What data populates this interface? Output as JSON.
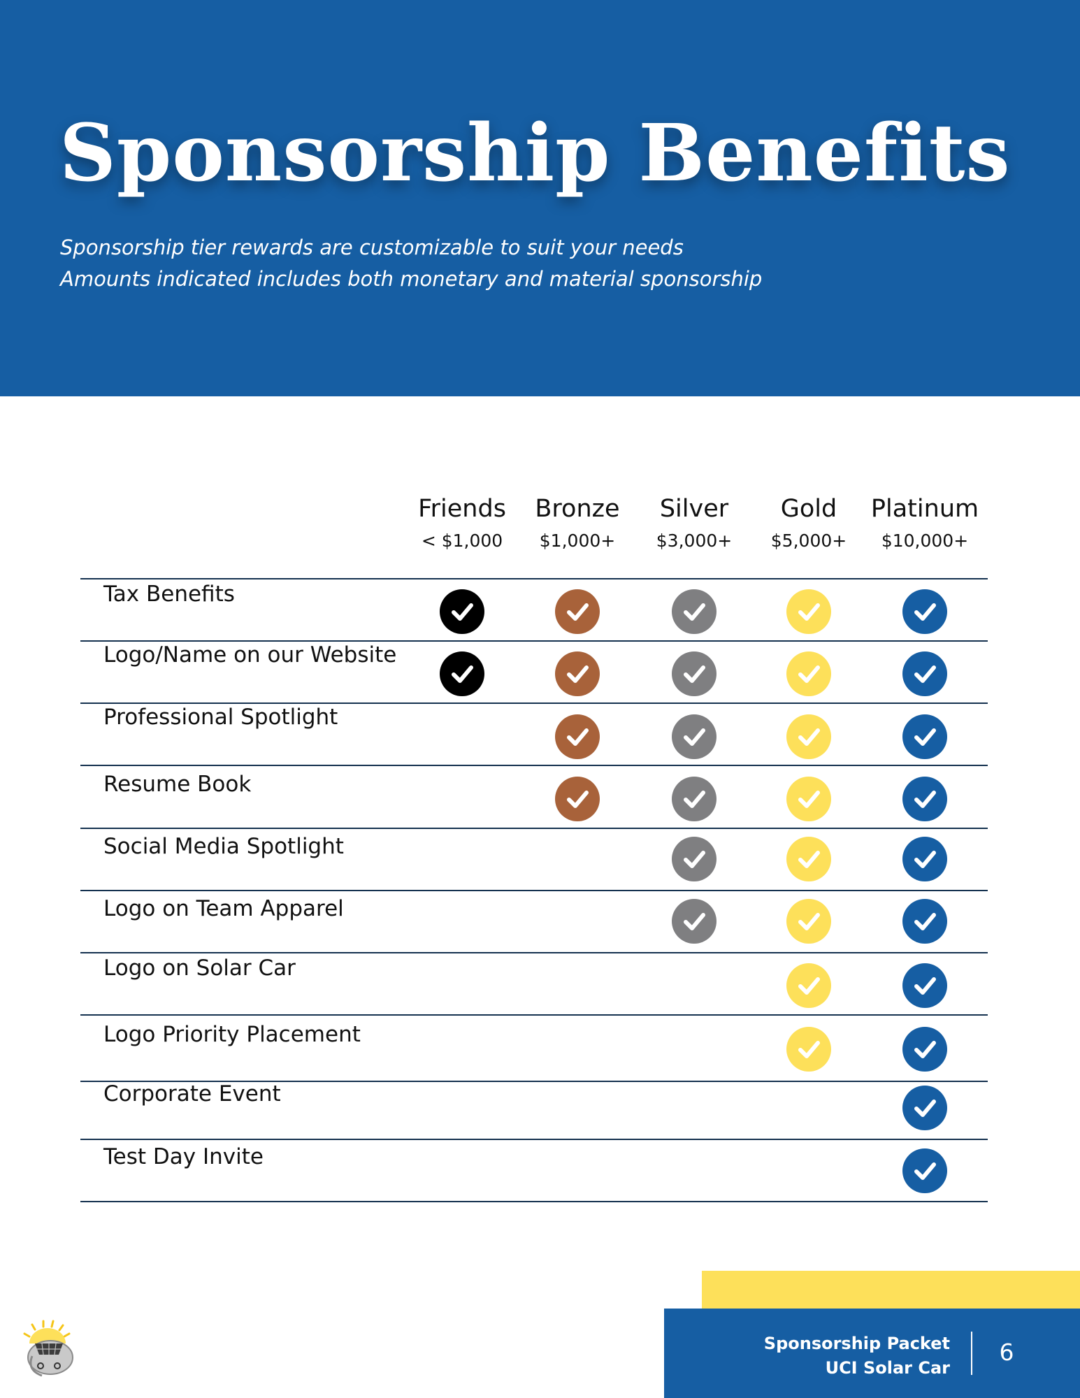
{
  "header": {
    "title": "Sponsorship Benefits",
    "subtitle_lines": [
      "Sponsorship tier rewards are customizable to suit your needs",
      "Amounts indicated includes both monetary and material sponsorship"
    ]
  },
  "tiers": [
    {
      "name": "Friends",
      "amount": "< $1,000",
      "color": "#000000"
    },
    {
      "name": "Bronze",
      "amount": "$1,000+",
      "color": "#a8623a"
    },
    {
      "name": "Silver",
      "amount": "$3,000+",
      "color": "#7f7f81"
    },
    {
      "name": "Gold",
      "amount": "$5,000+",
      "color": "#fde05a"
    },
    {
      "name": "Platinum",
      "amount": "$10,000+",
      "color": "#165ea3"
    }
  ],
  "benefits": [
    {
      "label": "Tax Benefits",
      "tiers": [
        "Friends",
        "Bronze",
        "Silver",
        "Gold",
        "Platinum"
      ]
    },
    {
      "label": "Logo/Name on our Website",
      "tiers": [
        "Friends",
        "Bronze",
        "Silver",
        "Gold",
        "Platinum"
      ]
    },
    {
      "label": "Professional Spotlight",
      "tiers": [
        "Bronze",
        "Silver",
        "Gold",
        "Platinum"
      ]
    },
    {
      "label": "Resume Book",
      "tiers": [
        "Bronze",
        "Silver",
        "Gold",
        "Platinum"
      ]
    },
    {
      "label": "Social Media Spotlight",
      "tiers": [
        "Silver",
        "Gold",
        "Platinum"
      ]
    },
    {
      "label": "Logo on Team Apparel",
      "tiers": [
        "Silver",
        "Gold",
        "Platinum"
      ]
    },
    {
      "label": "Logo on Solar Car",
      "tiers": [
        "Gold",
        "Platinum"
      ]
    },
    {
      "label": "Logo Priority Placement",
      "tiers": [
        "Gold",
        "Platinum"
      ]
    },
    {
      "label": "Corporate Event",
      "tiers": [
        "Platinum"
      ]
    },
    {
      "label": "Test Day Invite",
      "tiers": [
        "Platinum"
      ]
    }
  ],
  "footer": {
    "line1": "Sponsorship Packet",
    "line2": "UCI Solar Car",
    "page_number": "6",
    "logo_icon": "uci-solar-car-logo"
  },
  "colors": {
    "header_blue": "#165ea3",
    "accent_yellow": "#fde05a",
    "rule": "#14314f"
  }
}
